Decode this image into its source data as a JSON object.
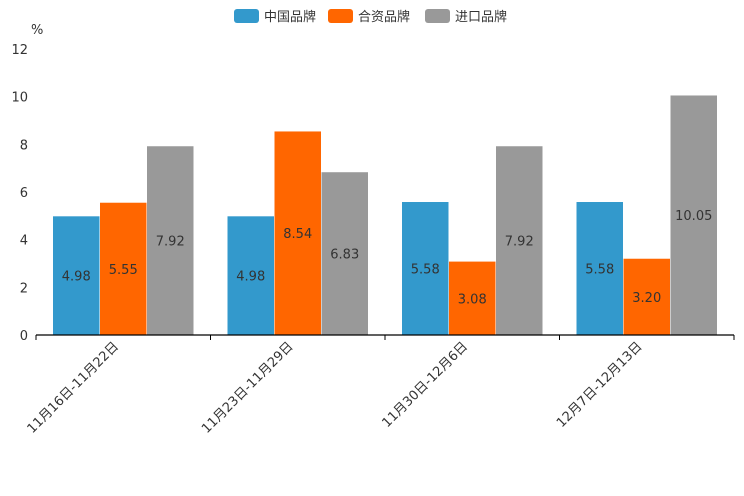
{
  "chart_data": {
    "type": "bar",
    "title": "",
    "xlabel": "",
    "ylabel": "%",
    "ylim": [
      0,
      12
    ],
    "yticks": [
      0,
      2,
      4,
      6,
      8,
      10,
      12
    ],
    "grid": false,
    "legend_position": "top-center",
    "categories": [
      "11月16日-11月22日",
      "11月23日-11月29日",
      "11月30日-12月6日",
      "12月7日-12月13日"
    ],
    "series": [
      {
        "name": "中国品牌",
        "color": "#3399CC",
        "values": [
          4.98,
          4.98,
          5.58,
          5.58
        ],
        "labels": [
          "4.98",
          "4.98",
          "5.58",
          "5.58"
        ]
      },
      {
        "name": "合资品牌",
        "color": "#FF6600",
        "values": [
          5.55,
          8.54,
          3.08,
          3.2
        ],
        "labels": [
          "5.55",
          "8.54",
          "3.08",
          "3.20"
        ]
      },
      {
        "name": "进口品牌",
        "color": "#999999",
        "values": [
          7.92,
          6.83,
          7.92,
          10.05
        ],
        "labels": [
          "7.92",
          "6.83",
          "7.92",
          "10.05"
        ]
      }
    ]
  }
}
